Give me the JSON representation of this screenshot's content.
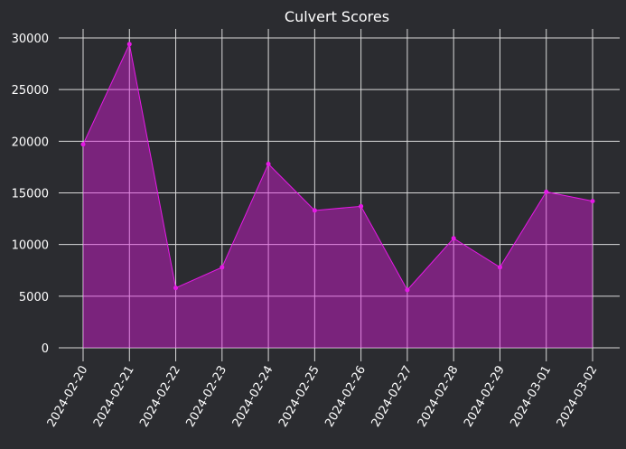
{
  "chart_data": {
    "type": "area",
    "title": "Culvert Scores",
    "xlabel": "",
    "ylabel": "",
    "categories": [
      "2024-02-20",
      "2024-02-21",
      "2024-02-22",
      "2024-02-23",
      "2024-02-24",
      "2024-02-25",
      "2024-02-26",
      "2024-02-27",
      "2024-02-28",
      "2024-02-29",
      "2024-03-01",
      "2024-03-02"
    ],
    "series": [
      {
        "values": [
          19700,
          29400,
          5800,
          7800,
          17800,
          13300,
          13700,
          5600,
          10600,
          7800,
          15100,
          14200
        ]
      }
    ],
    "ylim": [
      0,
      30000
    ],
    "yticks": [
      0,
      5000,
      10000,
      15000,
      20000,
      25000,
      30000
    ],
    "grid": true,
    "colors": {
      "background": "#2b2c30",
      "line": "#e619e6",
      "fill": "#6b2070",
      "grid": "#d9d9d9",
      "text": "#ffffff"
    }
  }
}
